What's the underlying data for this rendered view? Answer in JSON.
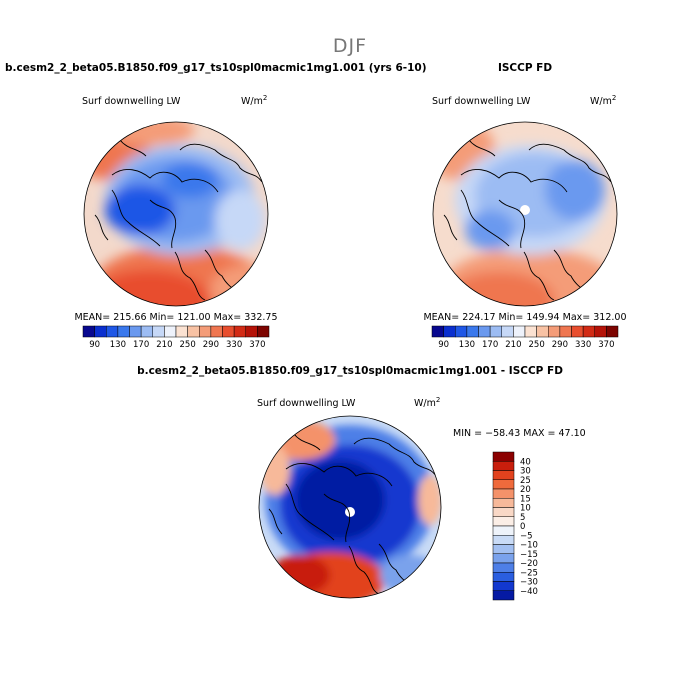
{
  "figure": {
    "title": "DJF"
  },
  "chart_data": [
    {
      "type": "heatmap",
      "projection": "polar-stereographic-north",
      "panel_title": "b.cesm2_2_beta05.B1850.f09_g17_ts10spl0macmic1mg1.001 (yrs 6-10)",
      "variable": "Surf downwelling LW",
      "units": "W/m",
      "units_superscript": "2",
      "stats_text": "MEAN= 215.66   Min= 121.00   Max= 332.75",
      "mean": 215.66,
      "min": 121.0,
      "max": 332.75,
      "colorbar_ticks": [
        "90",
        "130",
        "170",
        "210",
        "250",
        "290",
        "330",
        "370"
      ],
      "colorbar_colors": [
        "#08088f",
        "#0a2fcf",
        "#1f57e6",
        "#3a78ec",
        "#6a99ef",
        "#9cbcf3",
        "#c6d8f7",
        "#eef2fb",
        "#fbe2d2",
        "#f8c2a4",
        "#f49c78",
        "#ef7650",
        "#e84e2e",
        "#d22b15",
        "#b51308",
        "#7d0400"
      ]
    },
    {
      "type": "heatmap",
      "projection": "polar-stereographic-north",
      "panel_title": "ISCCP FD",
      "variable": "Surf downwelling LW",
      "units": "W/m",
      "units_superscript": "2",
      "stats_text": "MEAN= 224.17   Min= 149.94   Max= 312.00",
      "mean": 224.17,
      "min": 149.94,
      "max": 312.0,
      "colorbar_ticks": [
        "90",
        "130",
        "170",
        "210",
        "250",
        "290",
        "330",
        "370"
      ],
      "colorbar_colors": [
        "#08088f",
        "#0a2fcf",
        "#1f57e6",
        "#3a78ec",
        "#6a99ef",
        "#9cbcf3",
        "#c6d8f7",
        "#eef2fb",
        "#fbe2d2",
        "#f8c2a4",
        "#f49c78",
        "#ef7650",
        "#e84e2e",
        "#d22b15",
        "#b51308",
        "#7d0400"
      ]
    },
    {
      "type": "heatmap",
      "projection": "polar-stereographic-north",
      "panel_title": "b.cesm2_2_beta05.B1850.f09_g17_ts10spl0macmic1mg1.001 - ISCCP FD",
      "variable": "Surf downwelling LW",
      "units": "W/m",
      "units_superscript": "2",
      "stats_text": "MIN = −58.43  MAX =  47.10",
      "min": -58.43,
      "max": 47.1,
      "colorbar_ticks": [
        "40",
        "30",
        "25",
        "20",
        "15",
        "10",
        "5",
        "0",
        "−5",
        "−10",
        "−15",
        "−20",
        "−25",
        "−30",
        "−40"
      ],
      "colorbar_colors": [
        "#8b0000",
        "#c81e0c",
        "#e2421e",
        "#ef6a3c",
        "#f4926a",
        "#f7b99a",
        "#f9d8c6",
        "#fbeee6",
        "#eef3fa",
        "#c9dbf6",
        "#a3c0f1",
        "#7aa2ec",
        "#4e7fe7",
        "#2a5ee0",
        "#1238cf",
        "#051aa3"
      ]
    }
  ]
}
